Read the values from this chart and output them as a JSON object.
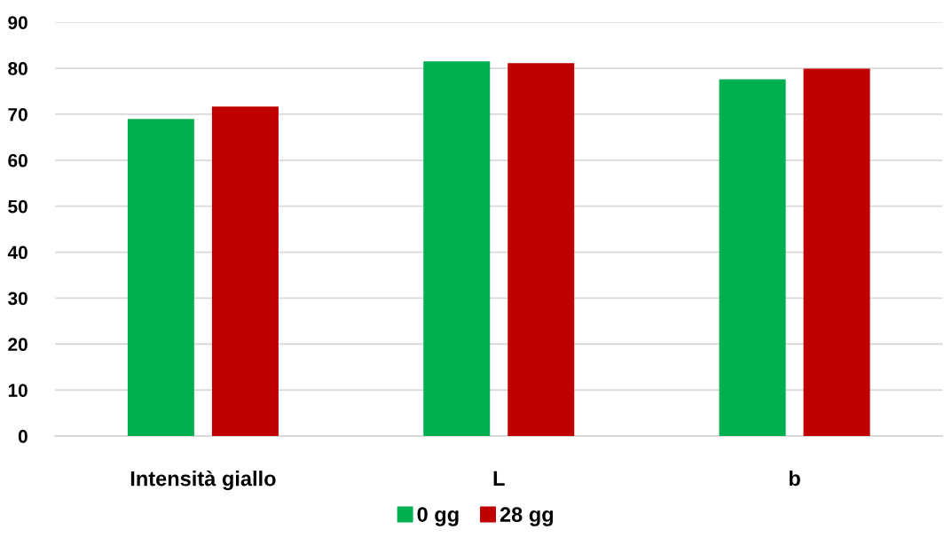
{
  "chart_data": {
    "type": "bar",
    "categories": [
      "Intensità giallo",
      "L",
      "b"
    ],
    "series": [
      {
        "name": "0 gg",
        "color": "#00b050",
        "values": [
          69.0,
          81.5,
          77.6
        ]
      },
      {
        "name": "28 gg",
        "color": "#c00000",
        "values": [
          71.7,
          81.1,
          79.9
        ]
      }
    ],
    "ylim": [
      0,
      90
    ],
    "yticks": [
      0,
      10,
      20,
      30,
      40,
      50,
      60,
      70,
      80,
      90
    ],
    "grid": "y",
    "legend": "bottom"
  }
}
